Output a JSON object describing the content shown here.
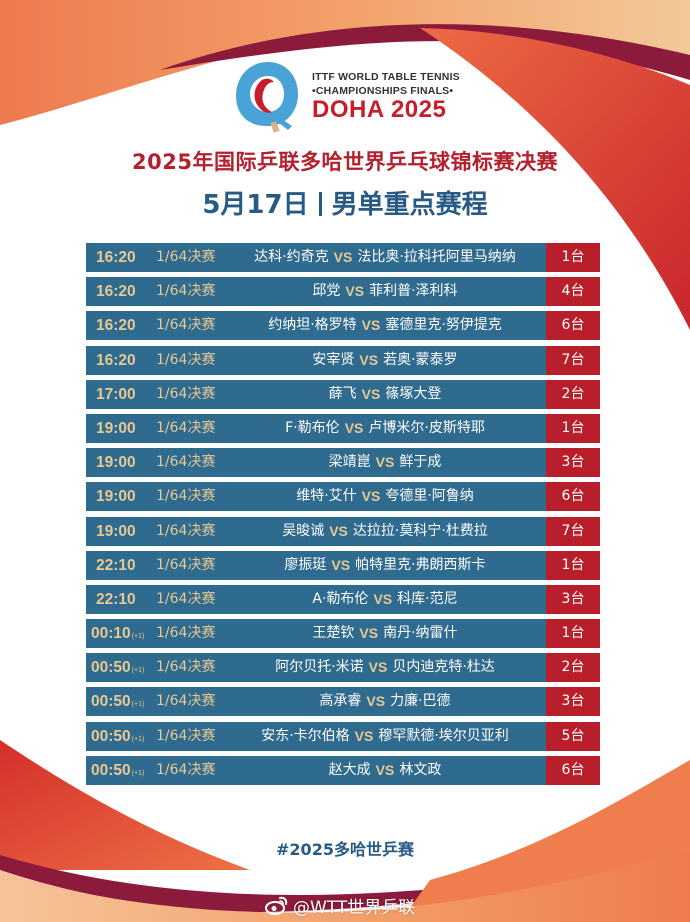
{
  "logo": {
    "line1": "ITTF WORLD TABLE TENNIS",
    "line2": "•CHAMPIONSHIPS FINALS•",
    "city": "DOHA 2025"
  },
  "header": {
    "title": "2025年国际乒联多哈世界乒乓球锦标赛决赛",
    "date": "5月17日",
    "subtitle": "男单重点赛程"
  },
  "colors": {
    "row_bg": "#2f6a8f",
    "table_bg": "#b81f2a",
    "gold": "#e6c893",
    "title_red": "#b3202e",
    "subtitle_blue": "#285a86"
  },
  "schedule": {
    "vs_label": "VS",
    "rows": [
      {
        "time": "16:20",
        "next_day": "",
        "round": "1/64决赛",
        "player1": "达科·约奇克",
        "player2": "法比奥·拉科托阿里马纳纳",
        "table": "1台"
      },
      {
        "time": "16:20",
        "next_day": "",
        "round": "1/64决赛",
        "player1": "邱党",
        "player2": "菲利普·泽利科",
        "table": "4台"
      },
      {
        "time": "16:20",
        "next_day": "",
        "round": "1/64决赛",
        "player1": "约纳坦·格罗特",
        "player2": "塞德里克·努伊提克",
        "table": "6台"
      },
      {
        "time": "16:20",
        "next_day": "",
        "round": "1/64决赛",
        "player1": "安宰贤",
        "player2": "若奥·蒙泰罗",
        "table": "7台"
      },
      {
        "time": "17:00",
        "next_day": "",
        "round": "1/64决赛",
        "player1": "薛飞",
        "player2": "篠塚大登",
        "table": "2台"
      },
      {
        "time": "19:00",
        "next_day": "",
        "round": "1/64决赛",
        "player1": "F·勒布伦",
        "player2": "卢博米尔·皮斯特耶",
        "table": "1台"
      },
      {
        "time": "19:00",
        "next_day": "",
        "round": "1/64决赛",
        "player1": "梁靖崑",
        "player2": "鲜于成",
        "table": "3台"
      },
      {
        "time": "19:00",
        "next_day": "",
        "round": "1/64决赛",
        "player1": "维特·艾什",
        "player2": "夸德里·阿鲁纳",
        "table": "6台"
      },
      {
        "time": "19:00",
        "next_day": "",
        "round": "1/64决赛",
        "player1": "吴晙诚",
        "player2": "达拉拉·莫科宁·杜费拉",
        "table": "7台"
      },
      {
        "time": "22:10",
        "next_day": "",
        "round": "1/64决赛",
        "player1": "廖振珽",
        "player2": "帕特里克·弗朗西斯卡",
        "table": "1台"
      },
      {
        "time": "22:10",
        "next_day": "",
        "round": "1/64决赛",
        "player1": "A·勒布伦",
        "player2": "科库·范尼",
        "table": "3台"
      },
      {
        "time": "00:10",
        "next_day": "(+1)",
        "round": "1/64决赛",
        "player1": "王楚钦",
        "player2": "南丹·纳雷什",
        "table": "1台"
      },
      {
        "time": "00:50",
        "next_day": "(+1)",
        "round": "1/64决赛",
        "player1": "阿尔贝托·米诺",
        "player2": "贝内迪克特·杜达",
        "table": "2台"
      },
      {
        "time": "00:50",
        "next_day": "(+1)",
        "round": "1/64决赛",
        "player1": "高承睿",
        "player2": "力廉·巴德",
        "table": "3台"
      },
      {
        "time": "00:50",
        "next_day": "(+1)",
        "round": "1/64决赛",
        "player1": "安东·卡尔伯格",
        "player2": "穆罕默德·埃尔贝亚利",
        "table": "5台"
      },
      {
        "time": "00:50",
        "next_day": "(+1)",
        "round": "1/64决赛",
        "player1": "赵大成",
        "player2": "林文政",
        "table": "6台"
      }
    ]
  },
  "footer": {
    "hashtag": "#2025多哈世乒赛",
    "watermark": "@WTT世界乒联",
    "watermark_icon": "weibo-icon"
  }
}
